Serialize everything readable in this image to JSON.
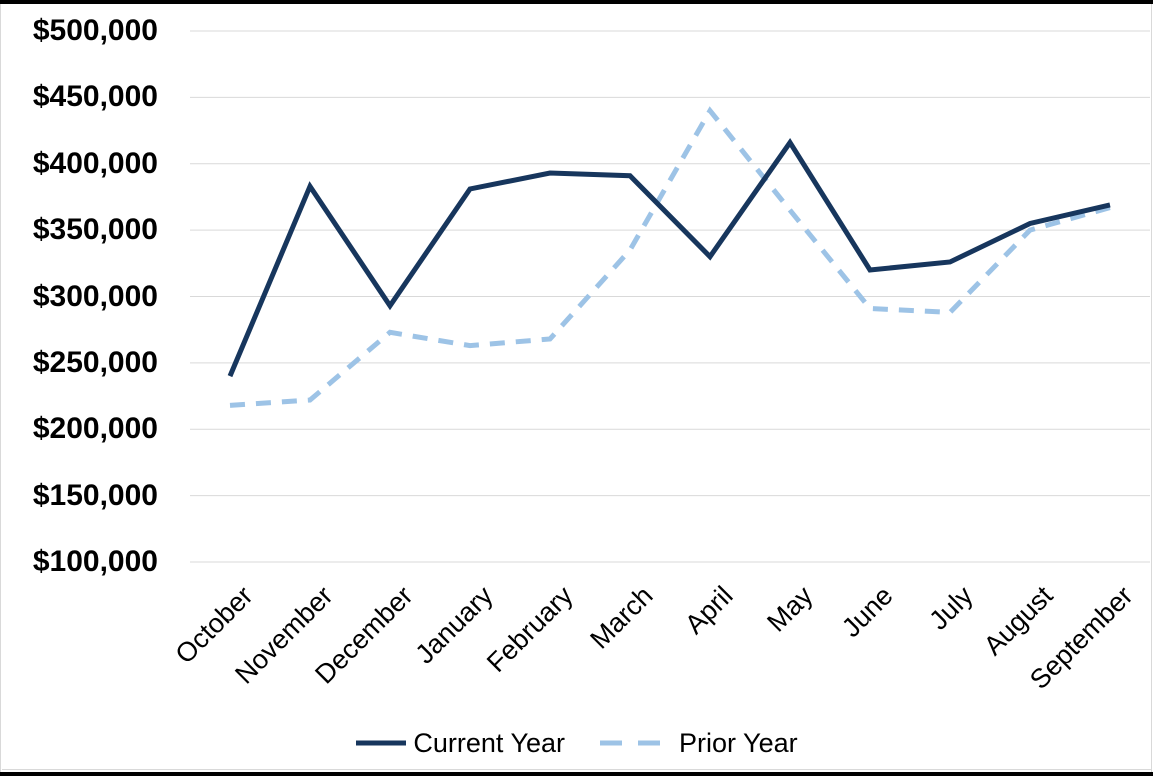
{
  "chart_data": {
    "type": "line",
    "title": "",
    "xlabel": "",
    "ylabel": "",
    "categories": [
      "October",
      "November",
      "December",
      "January",
      "February",
      "March",
      "April",
      "May",
      "June",
      "July",
      "August",
      "September"
    ],
    "series": [
      {
        "name": "Current Year",
        "style": "solid",
        "color": "#17365d",
        "values": [
          240000,
          383000,
          293000,
          381000,
          393000,
          391000,
          330000,
          416000,
          320000,
          326000,
          355000,
          369000
        ]
      },
      {
        "name": "Prior Year",
        "style": "dashed",
        "color": "#9dc3e6",
        "values": [
          218000,
          222000,
          273000,
          263000,
          268000,
          335000,
          440000,
          365000,
          291000,
          288000,
          350000,
          367000
        ]
      }
    ],
    "ylim": [
      100000,
      500000
    ],
    "ytick_step": 50000,
    "ytick_labels_top_to_bottom": [
      "$500,000",
      "$450,000",
      "$400,000",
      "$350,000",
      "$300,000",
      "$250,000",
      "$200,000",
      "$150,000",
      "$100,000"
    ],
    "grid": true,
    "gridline_color": "#d9d9d9",
    "legend_position": "bottom",
    "background": "#ffffff",
    "frame_border_color": "#000000"
  }
}
